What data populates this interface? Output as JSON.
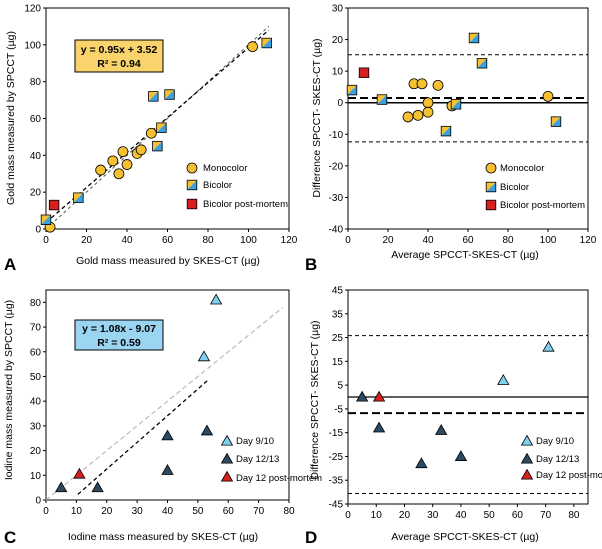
{
  "colors": {
    "mono": "#f5c032",
    "bicolor_a": "#f5c032",
    "bicolor_b": "#3aa0e0",
    "postmortem": "#d62020",
    "day_9_10": "#7fd0ee",
    "day_12_13": "#2b4a62",
    "day_12_pm": "#d62020",
    "eq_gold_bg": "#f9d36b",
    "eq_iodine_bg": "#9bd5f2"
  },
  "chart_data": [
    {
      "panel": "A",
      "type": "scatter",
      "xlabel": "Gold mass measured by SKES-CT (µg)",
      "ylabel": "Gold mass measured by SPCCT (µg)",
      "xlim": [
        0,
        120
      ],
      "ylim": [
        0,
        120
      ],
      "xticks": [
        "0",
        "20",
        "40",
        "60",
        "80",
        "100",
        "120"
      ],
      "yticks": [
        "0",
        "20",
        "40",
        "60",
        "80",
        "100",
        "120"
      ],
      "equation": "y = 0.95x + 3.52",
      "r2": "R² = 0.94",
      "identity_line": [
        [
          0,
          0
        ],
        [
          110,
          110
        ]
      ],
      "fit_line": [
        [
          0,
          3.52
        ],
        [
          110,
          108.0
        ]
      ],
      "legend": [
        "Monocolor",
        "Bicolor",
        "Bicolor post-mortem"
      ],
      "series": [
        {
          "name": "Monocolor",
          "marker": "circle",
          "points": [
            [
              2,
              1
            ],
            [
              27,
              32
            ],
            [
              33,
              37
            ],
            [
              36,
              30
            ],
            [
              38,
              42
            ],
            [
              40,
              35
            ],
            [
              45,
              41
            ],
            [
              47,
              43
            ],
            [
              52,
              52
            ],
            [
              102,
              99
            ]
          ]
        },
        {
          "name": "Bicolor",
          "marker": "square-bicolor",
          "points": [
            [
              0,
              5
            ],
            [
              16,
              17
            ],
            [
              53,
              72
            ],
            [
              55,
              45
            ],
            [
              57,
              55
            ],
            [
              61,
              73
            ],
            [
              109,
              101
            ]
          ]
        },
        {
          "name": "Bicolor post-mortem",
          "marker": "square-red",
          "points": [
            [
              4,
              13
            ]
          ]
        }
      ]
    },
    {
      "panel": "B",
      "type": "scatter",
      "xlabel": "Average SPCCT-SKES-CT (µg)",
      "ylabel": "Difference SPCCT- SKES-CT (µg)",
      "xlim": [
        0,
        120
      ],
      "ylim": [
        -40,
        30
      ],
      "xticks": [
        "0",
        "20",
        "40",
        "60",
        "80",
        "100",
        "120"
      ],
      "yticks": [
        "-40",
        "-30",
        "-20",
        "-10",
        "0",
        "10",
        "20",
        "30"
      ],
      "mean_line": 1.5,
      "upper_loa": 15.2,
      "lower_loa": -12.4,
      "legend": [
        "Monocolor",
        "Bicolor",
        "Bicolor post-mortem"
      ],
      "series": [
        {
          "name": "Monocolor",
          "marker": "circle",
          "points": [
            [
              30,
              -4.5
            ],
            [
              33,
              6
            ],
            [
              35,
              -4
            ],
            [
              37,
              6
            ],
            [
              40,
              0
            ],
            [
              40,
              -3
            ],
            [
              45,
              5.5
            ],
            [
              52,
              -1
            ],
            [
              100,
              2
            ]
          ]
        },
        {
          "name": "Bicolor",
          "marker": "square-bicolor",
          "points": [
            [
              2,
              4
            ],
            [
              17,
              1
            ],
            [
              49,
              -9
            ],
            [
              54,
              -0.5
            ],
            [
              63,
              20.5
            ],
            [
              67,
              12.5
            ],
            [
              104,
              -6
            ]
          ]
        },
        {
          "name": "Bicolor post-mortem",
          "marker": "square-red",
          "points": [
            [
              8,
              9.5
            ]
          ]
        }
      ]
    },
    {
      "panel": "C",
      "type": "scatter",
      "xlabel": "Iodine mass measured by SKES-CT (µg)",
      "ylabel": "Iodine mass measured by SPCCT (µg)",
      "xlim": [
        0,
        80
      ],
      "ylim": [
        0,
        85
      ],
      "xticks": [
        "0",
        "10",
        "20",
        "30",
        "40",
        "50",
        "60",
        "70",
        "80"
      ],
      "yticks": [
        "0",
        "10",
        "20",
        "30",
        "40",
        "50",
        "60",
        "70",
        "80"
      ],
      "equation": "y = 1.08x - 9.07",
      "r2": "R² = 0.59",
      "identity_line": [
        [
          0,
          0
        ],
        [
          78,
          78
        ]
      ],
      "fit_line": [
        [
          10.5,
          2.27
        ],
        [
          53.3,
          48.5
        ]
      ],
      "legend": [
        "Day 9/10",
        "Day 12/13",
        "Day 12 post-mortem"
      ],
      "series": [
        {
          "name": "Day 9/10",
          "marker": "triangle",
          "points": [
            [
              52,
              58
            ],
            [
              56,
              81
            ]
          ]
        },
        {
          "name": "Day 12/13",
          "marker": "triangle",
          "points": [
            [
              5,
              5
            ],
            [
              17,
              5
            ],
            [
              40,
              12
            ],
            [
              40,
              26
            ],
            [
              53,
              28
            ]
          ]
        },
        {
          "name": "Day 12 post-mortem",
          "marker": "triangle",
          "points": [
            [
              11,
              10.5
            ]
          ]
        }
      ]
    },
    {
      "panel": "D",
      "type": "scatter",
      "xlabel": "Average SPCCT-SKES-CT (µg)",
      "ylabel": "Difference SPCCT- SKES-CT (µg)",
      "xlim": [
        0,
        85
      ],
      "ylim": [
        -45,
        45
      ],
      "xticks": [
        "0",
        "10",
        "20",
        "30",
        "40",
        "50",
        "60",
        "70",
        "80"
      ],
      "yticks": [
        "-45",
        "-35",
        "-25",
        "-15",
        "-5",
        "5",
        "15",
        "25",
        "35",
        "45"
      ],
      "zero_line": 0,
      "mean_line": -6.8,
      "upper_loa": 25.8,
      "lower_loa": -40.6,
      "legend": [
        "Day 9/10",
        "Day 12/13",
        "Day 12 post-mortem"
      ],
      "series": [
        {
          "name": "Day 9/10",
          "marker": "triangle",
          "points": [
            [
              55,
              7
            ],
            [
              71,
              21
            ]
          ]
        },
        {
          "name": "Day 12/13",
          "marker": "triangle",
          "points": [
            [
              5,
              0
            ],
            [
              11,
              -13
            ],
            [
              26,
              -28
            ],
            [
              33,
              -14
            ],
            [
              40,
              -25
            ]
          ]
        },
        {
          "name": "Day 12 post-mortem",
          "marker": "triangle",
          "points": [
            [
              11,
              0
            ]
          ]
        }
      ]
    }
  ]
}
